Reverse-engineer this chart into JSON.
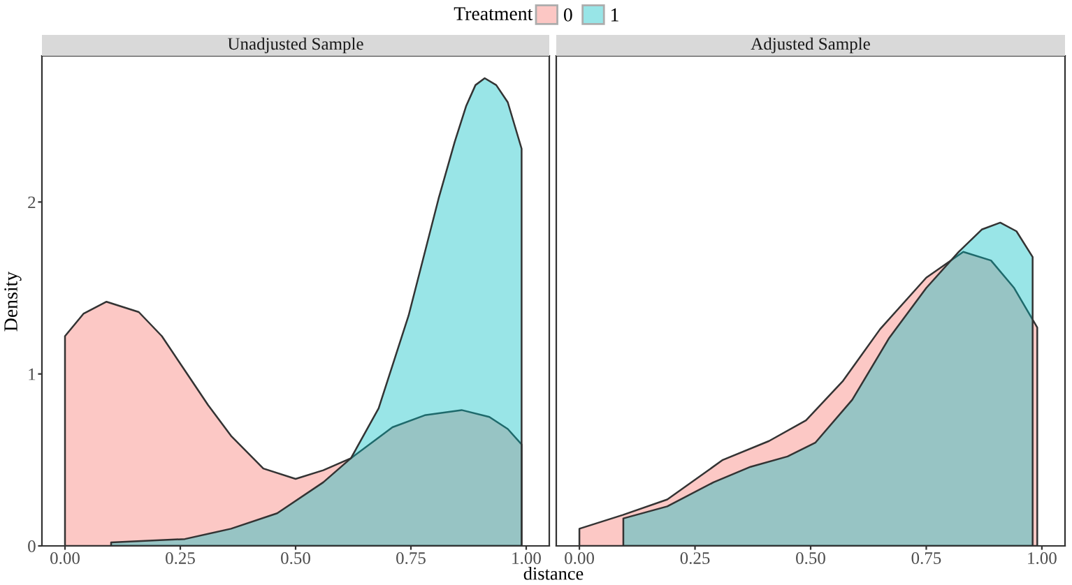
{
  "chart_data": [
    {
      "type": "area",
      "title": "Unadjusted Sample",
      "xlabel": "distance",
      "ylabel": "Density",
      "legend_title": "Treatment",
      "legend": "top",
      "xlim": [
        -0.05,
        1.05
      ],
      "xticks": [
        {
          "value": 0,
          "label": "0.00"
        },
        {
          "value": 0.25,
          "label": "0.25"
        },
        {
          "value": 0.5,
          "label": "0.50"
        },
        {
          "value": 0.75,
          "label": "0.75"
        },
        {
          "value": 1,
          "label": "1.00"
        }
      ],
      "ylim": [
        0,
        2.85
      ],
      "yticks": [
        0,
        1,
        2
      ],
      "series": [
        {
          "name": "0",
          "color": "#f8766d",
          "x": [
            0,
            0.04,
            0.09,
            0.16,
            0.21,
            0.26,
            0.31,
            0.36,
            0.43,
            0.5,
            0.56,
            0.62,
            0.67,
            0.71,
            0.78,
            0.86,
            0.92,
            0.96,
            0.99
          ],
          "values": [
            1.22,
            1.35,
            1.42,
            1.36,
            1.22,
            1.02,
            0.82,
            0.64,
            0.45,
            0.39,
            0.44,
            0.51,
            0.61,
            0.69,
            0.76,
            0.79,
            0.75,
            0.68,
            0.59
          ]
        },
        {
          "name": "1",
          "color": "#00bfc4",
          "x": [
            0.1,
            0.26,
            0.36,
            0.46,
            0.56,
            0.62,
            0.68,
            0.745,
            0.81,
            0.845,
            0.87,
            0.89,
            0.91,
            0.935,
            0.96,
            0.99
          ],
          "values": [
            0.02,
            0.04,
            0.1,
            0.19,
            0.37,
            0.51,
            0.8,
            1.34,
            2.02,
            2.35,
            2.56,
            2.68,
            2.72,
            2.68,
            2.58,
            2.31
          ]
        }
      ]
    },
    {
      "type": "area",
      "title": "Adjusted Sample",
      "tick_labels": "x",
      "xlim": [
        -0.05,
        1.05
      ],
      "xticks": [
        {
          "value": 0,
          "label": "0.00"
        },
        {
          "value": 0.25,
          "label": "0.25"
        },
        {
          "value": 0.5,
          "label": "0.50"
        },
        {
          "value": 0.75,
          "label": "0.75"
        },
        {
          "value": 1,
          "label": "1.00"
        }
      ],
      "ylim": [
        0,
        2.85
      ],
      "yticks": [
        0,
        1,
        2
      ],
      "series": [
        {
          "name": "0",
          "color": "#f8766d",
          "x": [
            0,
            0.094,
            0.19,
            0.31,
            0.41,
            0.49,
            0.57,
            0.65,
            0.75,
            0.83,
            0.89,
            0.94,
            0.99
          ],
          "values": [
            0.1,
            0.18,
            0.27,
            0.5,
            0.61,
            0.73,
            0.96,
            1.26,
            1.56,
            1.71,
            1.66,
            1.5,
            1.27
          ]
        },
        {
          "name": "1",
          "color": "#00bfc4",
          "x": [
            0.095,
            0.19,
            0.29,
            0.37,
            0.45,
            0.51,
            0.59,
            0.67,
            0.75,
            0.82,
            0.87,
            0.91,
            0.945,
            0.98
          ],
          "values": [
            0.16,
            0.23,
            0.37,
            0.46,
            0.52,
            0.6,
            0.85,
            1.21,
            1.5,
            1.71,
            1.84,
            1.88,
            1.83,
            1.68
          ]
        }
      ]
    }
  ]
}
